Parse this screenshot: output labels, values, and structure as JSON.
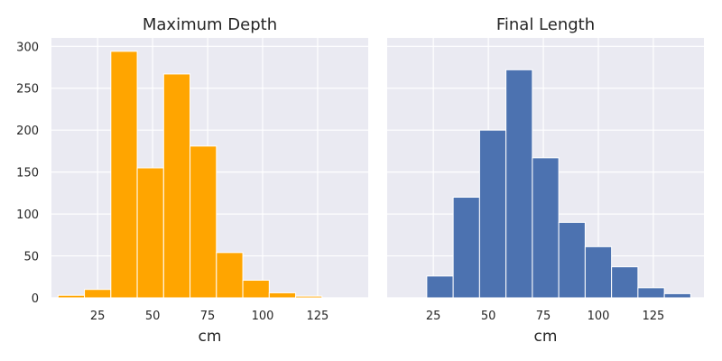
{
  "chart_data": [
    {
      "type": "bar",
      "title": "Maximum Depth",
      "xlabel": "cm",
      "ylabel": "",
      "xlim": [
        4,
        148
      ],
      "ylim": [
        0,
        310
      ],
      "xticks": [
        25,
        50,
        75,
        100,
        125
      ],
      "yticks": [
        0,
        50,
        100,
        150,
        200,
        250,
        300
      ],
      "color": "#ffa500",
      "bins": [
        {
          "x0": 7,
          "x1": 19,
          "value": 3
        },
        {
          "x0": 19,
          "x1": 31,
          "value": 10
        },
        {
          "x0": 31,
          "x1": 43,
          "value": 294
        },
        {
          "x0": 43,
          "x1": 55,
          "value": 155
        },
        {
          "x0": 55,
          "x1": 67,
          "value": 267
        },
        {
          "x0": 67,
          "x1": 79,
          "value": 181
        },
        {
          "x0": 79,
          "x1": 91,
          "value": 54
        },
        {
          "x0": 91,
          "x1": 103,
          "value": 21
        },
        {
          "x0": 103,
          "x1": 115,
          "value": 6
        },
        {
          "x0": 115,
          "x1": 127,
          "value": 2
        }
      ],
      "grid": true
    },
    {
      "type": "bar",
      "title": "Final Length",
      "xlabel": "cm",
      "ylabel": "",
      "xlim": [
        4,
        148
      ],
      "ylim": [
        0,
        310
      ],
      "xticks": [
        25,
        50,
        75,
        100,
        125
      ],
      "yticks": [
        0,
        50,
        100,
        150,
        200,
        250,
        300
      ],
      "color": "#4c72b0",
      "bins": [
        {
          "x0": 22,
          "x1": 34,
          "value": 26
        },
        {
          "x0": 34,
          "x1": 46,
          "value": 120
        },
        {
          "x0": 46,
          "x1": 58,
          "value": 200
        },
        {
          "x0": 58,
          "x1": 70,
          "value": 272
        },
        {
          "x0": 70,
          "x1": 82,
          "value": 167
        },
        {
          "x0": 82,
          "x1": 94,
          "value": 90
        },
        {
          "x0": 94,
          "x1": 106,
          "value": 61
        },
        {
          "x0": 106,
          "x1": 118,
          "value": 37
        },
        {
          "x0": 118,
          "x1": 130,
          "value": 12
        },
        {
          "x0": 130,
          "x1": 142,
          "value": 5
        }
      ],
      "grid": true
    }
  ]
}
